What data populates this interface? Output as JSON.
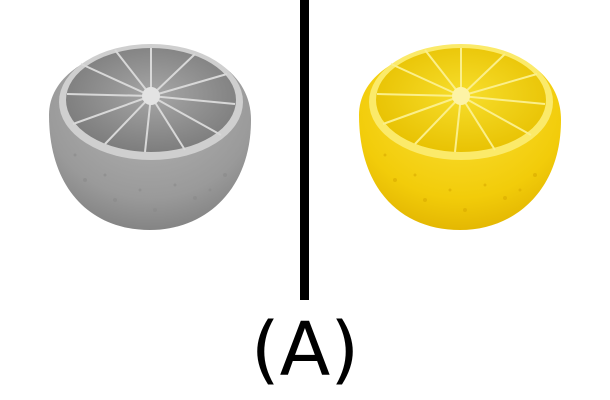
{
  "caption": "(A)",
  "images": {
    "left": {
      "subject": "lemon-half",
      "rendering": "grayscale"
    },
    "right": {
      "subject": "lemon-half",
      "rendering": "color"
    }
  },
  "colors": {
    "divider": "#000000",
    "background": "#ffffff",
    "gray_rind": "#9a9a9a",
    "gray_flesh": "#888888",
    "yellow_rind": "#f2cc0a",
    "yellow_flesh": "#f3d21a"
  }
}
